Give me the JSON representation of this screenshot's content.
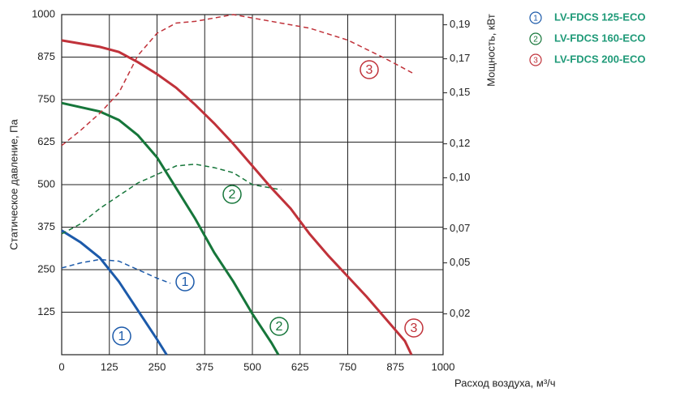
{
  "chart_data": {
    "type": "line",
    "xlabel": "Расход воздуха, м³/ч",
    "ylabel": "Статическое давление, Па",
    "y2label": "Мощность, кВт",
    "xlim": [
      0,
      1000
    ],
    "xticks": [
      0,
      125,
      250,
      375,
      500,
      625,
      750,
      875,
      1000
    ],
    "ylim": [
      0,
      1000
    ],
    "yticks": [
      125,
      250,
      375,
      500,
      625,
      750,
      875,
      1000
    ],
    "y2lim": [
      -0.004,
      0.196
    ],
    "y2ticks": [
      {
        "value": 0.02,
        "label": "0,02"
      },
      {
        "value": 0.05,
        "label": "0,05"
      },
      {
        "value": 0.07,
        "label": "0,07"
      },
      {
        "value": 0.1,
        "label": "0,10"
      },
      {
        "value": 0.12,
        "label": "0,12"
      },
      {
        "value": 0.15,
        "label": "0,15"
      },
      {
        "value": 0.17,
        "label": "0,17"
      },
      {
        "value": 0.19,
        "label": "0,19"
      }
    ],
    "grid": true,
    "legend_color": "#1f9a78",
    "series": [
      {
        "name": "LV-FDCS 125-ECO",
        "number": "1",
        "color": "#1c5aaa",
        "x": [
          0,
          50,
          100,
          150,
          200,
          250,
          275
        ],
        "values": [
          365,
          330,
          285,
          215,
          130,
          45,
          0
        ],
        "power": {
          "axis": "y2",
          "x": [
            0,
            50,
            100,
            150,
            200,
            250,
            285
          ],
          "values": [
            0.047,
            0.05,
            0.052,
            0.051,
            0.046,
            0.041,
            0.038
          ]
        }
      },
      {
        "name": "LV-FDCS 160-ECO",
        "number": "2",
        "color": "#16763a",
        "x": [
          0,
          100,
          150,
          200,
          250,
          300,
          350,
          400,
          450,
          500,
          550,
          568
        ],
        "values": [
          740,
          715,
          690,
          645,
          580,
          490,
          400,
          300,
          215,
          120,
          35,
          0
        ],
        "power": {
          "axis": "y2",
          "x": [
            0,
            50,
            100,
            200,
            300,
            350,
            400,
            450,
            500,
            575
          ],
          "values": [
            0.067,
            0.073,
            0.082,
            0.097,
            0.107,
            0.108,
            0.106,
            0.103,
            0.096,
            0.093
          ]
        }
      },
      {
        "name": "LV-FDCS 200-ECO",
        "number": "3",
        "color": "#c0323a",
        "x": [
          0,
          100,
          150,
          200,
          250,
          300,
          350,
          400,
          450,
          500,
          550,
          600,
          650,
          700,
          750,
          800,
          850,
          900,
          917
        ],
        "values": [
          924,
          905,
          890,
          860,
          825,
          785,
          735,
          680,
          620,
          555,
          490,
          430,
          355,
          290,
          230,
          170,
          105,
          40,
          0
        ],
        "power": {
          "axis": "y2",
          "x": [
            0,
            50,
            100,
            150,
            200,
            250,
            300,
            350,
            450,
            550,
            650,
            750,
            850,
            925
          ],
          "values": [
            0.119,
            0.128,
            0.138,
            0.15,
            0.172,
            0.185,
            0.191,
            0.192,
            0.196,
            0.192,
            0.188,
            0.181,
            0.17,
            0.161
          ]
        }
      }
    ]
  }
}
